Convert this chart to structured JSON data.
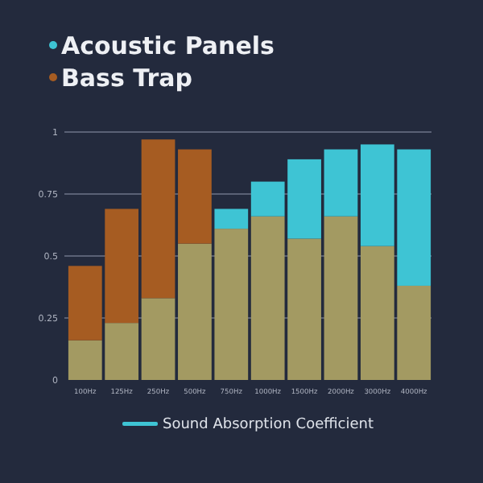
{
  "chart_data": {
    "type": "bar",
    "stacked": true,
    "categories": [
      "100Hz",
      "125Hz",
      "250Hz",
      "500Hz",
      "750Hz",
      "1000Hz",
      "1500Hz",
      "2000Hz",
      "3000Hz",
      "4000Hz"
    ],
    "series": [
      {
        "color": "#a39a62",
        "values": [
          0.16,
          0.23,
          0.33,
          0.55,
          0.61,
          0.66,
          0.57,
          0.66,
          0.54,
          0.38
        ]
      },
      {
        "name": "Acoustic Panels",
        "color": "#3ec4d4",
        "values": [
          null,
          null,
          null,
          null,
          0.08,
          0.14,
          0.32,
          0.27,
          0.41,
          0.55
        ]
      },
      {
        "name": "Bass Trap",
        "color": "#a65c22",
        "values": [
          0.3,
          0.46,
          0.64,
          0.38,
          null,
          null,
          null,
          null,
          null,
          null
        ]
      }
    ],
    "ylim": [
      0,
      1
    ],
    "yticks": [
      0,
      0.25,
      0.5,
      0.75,
      1
    ],
    "grid": "y",
    "legend": "top left",
    "annotations": [
      "Sound Absorption Coefficient"
    ]
  }
}
